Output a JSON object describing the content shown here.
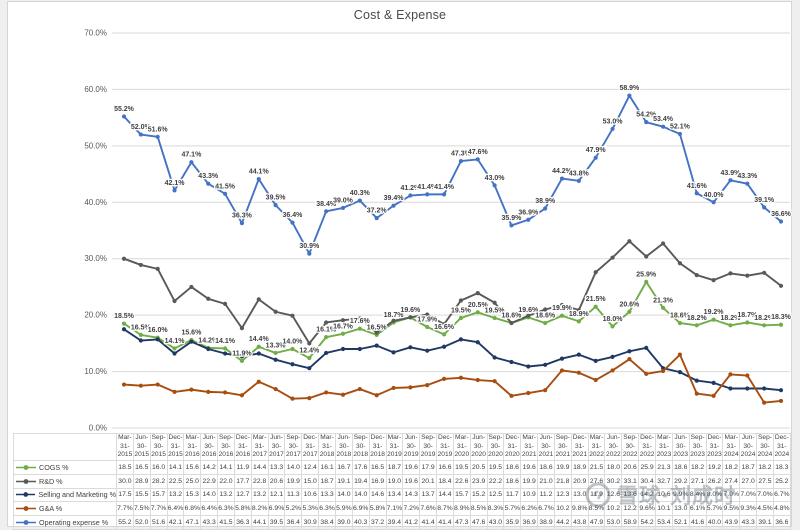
{
  "page": {
    "title": "Cost & Expense"
  },
  "chart_data": {
    "type": "line",
    "title": "Cost & Expense",
    "categories": [
      "Mar-31-2015",
      "Jun-30-2015",
      "Sep-30-2015",
      "Dec-31-2015",
      "Mar-31-2016",
      "Jun-30-2016",
      "Sep-30-2016",
      "Dec-31-2016",
      "Mar-31-2017",
      "Jun-30-2017",
      "Sep-30-2017",
      "Dec-31-2017",
      "Mar-31-2018",
      "Jun-30-2018",
      "Sep-30-2018",
      "Dec-31-2018",
      "Mar-31-2019",
      "Jun-30-2019",
      "Sep-30-2019",
      "Dec-31-2019",
      "Mar-31-2020",
      "Jun-30-2020",
      "Sep-30-2020",
      "Dec-31-2020",
      "Mar-31-2021",
      "Jun-30-2021",
      "Sep-30-2021",
      "Dec-31-2021",
      "Mar-31-2022",
      "Jun-30-2022",
      "Sep-30-2022",
      "Dec-31-2022",
      "Mar-31-2023",
      "Jun-30-2023",
      "Sep-30-2023",
      "Dec-31-2023",
      "Mar-31-2024",
      "Jun-30-2024",
      "Sep-30-2024",
      "Dec-31-2024"
    ],
    "series": [
      {
        "name": "COGS %",
        "color": "#70AD47",
        "labeled": true,
        "values": [
          18.5,
          16.5,
          16.0,
          14.1,
          15.6,
          14.2,
          14.1,
          11.9,
          14.4,
          13.3,
          14.0,
          12.4,
          16.1,
          16.7,
          17.6,
          16.5,
          18.7,
          19.6,
          17.9,
          16.6,
          19.5,
          20.5,
          19.5,
          18.6,
          19.6,
          18.6,
          19.9,
          18.9,
          21.5,
          18.0,
          20.6,
          25.9,
          21.3,
          18.6,
          18.2,
          19.2,
          18.2,
          18.7,
          18.2,
          18.3
        ]
      },
      {
        "name": "R&D %",
        "color": "#595959",
        "labeled": false,
        "values": [
          30.0,
          28.9,
          28.2,
          22.5,
          25.0,
          22.9,
          22.0,
          17.7,
          22.8,
          20.6,
          19.9,
          15.0,
          18.7,
          19.1,
          19.4,
          16.9,
          19.0,
          19.6,
          20.1,
          18.4,
          22.6,
          23.9,
          22.2,
          18.6,
          19.9,
          21.0,
          21.8,
          20.9,
          27.6,
          30.2,
          33.1,
          30.4,
          32.7,
          29.2,
          27.1,
          26.2,
          27.4,
          27.0,
          27.5,
          25.2
        ]
      },
      {
        "name": "Selling and Marketing %",
        "color": "#1F3864",
        "labeled": false,
        "values": [
          17.5,
          15.5,
          15.7,
          13.2,
          15.3,
          14.0,
          13.2,
          12.7,
          13.2,
          12.1,
          11.3,
          10.6,
          13.3,
          14.0,
          14.0,
          14.6,
          13.4,
          14.3,
          13.7,
          14.4,
          15.7,
          15.2,
          12.5,
          11.7,
          10.9,
          11.2,
          12.3,
          13.0,
          11.9,
          12.6,
          13.6,
          14.2,
          10.6,
          9.9,
          8.4,
          8.0,
          7.0,
          7.0,
          7.0,
          6.7
        ]
      },
      {
        "name": "G&A %",
        "color": "#A84D10",
        "labeled": false,
        "values": [
          7.7,
          7.5,
          7.7,
          6.4,
          6.8,
          6.4,
          6.3,
          5.8,
          8.2,
          6.9,
          5.2,
          5.3,
          6.3,
          5.9,
          6.9,
          5.8,
          7.1,
          7.2,
          7.6,
          8.7,
          8.9,
          8.5,
          8.3,
          5.7,
          6.2,
          6.7,
          10.2,
          9.8,
          8.5,
          10.2,
          12.2,
          9.6,
          10.1,
          13.0,
          6.1,
          5.7,
          9.5,
          9.3,
          4.5,
          4.8
        ]
      },
      {
        "name": "Operating expense %",
        "color": "#4472C4",
        "labeled": true,
        "values": [
          55.2,
          52.0,
          51.6,
          42.1,
          47.1,
          43.3,
          41.5,
          36.3,
          44.1,
          39.5,
          36.4,
          30.9,
          38.4,
          39.0,
          40.3,
          37.2,
          39.4,
          41.2,
          41.4,
          41.4,
          47.3,
          47.6,
          43.0,
          35.9,
          36.9,
          38.9,
          44.2,
          43.8,
          47.9,
          53.0,
          58.9,
          54.2,
          53.4,
          52.1,
          41.6,
          40.0,
          43.9,
          43.3,
          39.1,
          36.6
        ]
      }
    ],
    "ylim": [
      0,
      70
    ],
    "ytick_labels": [
      "0.0%",
      "10.0%",
      "20.0%",
      "30.0%",
      "40.0%",
      "50.0%",
      "60.0%",
      "70.0%"
    ],
    "grid": true,
    "legend_position": "data-table-left"
  },
  "watermark": {
    "icon": "xueqiu-logo",
    "text": "雪球·刘成时"
  }
}
